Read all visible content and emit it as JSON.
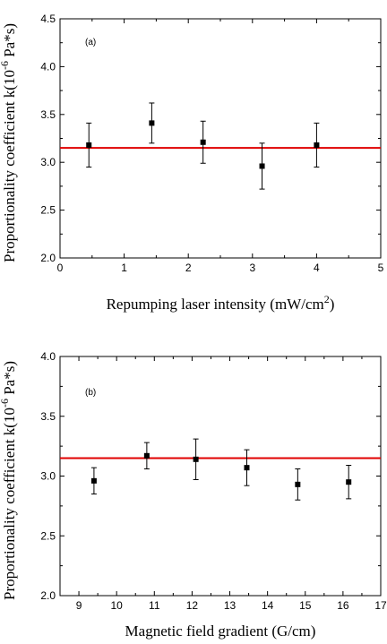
{
  "chart_data": [
    {
      "type": "scatter",
      "panel_label": "(a)",
      "xlabel": "Repumping laser intensity (mW/cm",
      "xlabel_sup": "2",
      "xlabel_end": ")",
      "ylabel": "Proportionality coefficient k(10",
      "ylabel_sup": "-6",
      "ylabel_end": " Pa*s)",
      "xlim": [
        0,
        5
      ],
      "ylim": [
        2.0,
        4.5
      ],
      "xticks": [
        "0",
        "1",
        "2",
        "3",
        "4",
        "5"
      ],
      "yticks": [
        "2.0",
        "2.5",
        "3.0",
        "3.5",
        "4.0",
        "4.5"
      ],
      "x": [
        0.45,
        1.43,
        2.23,
        3.15,
        4.0
      ],
      "y": [
        3.18,
        3.41,
        3.21,
        2.96,
        3.18
      ],
      "err": [
        0.23,
        0.21,
        0.22,
        0.24,
        0.23
      ],
      "reference_line": 3.15,
      "reference_color": "#e00000"
    },
    {
      "type": "scatter",
      "panel_label": "(b)",
      "xlabel": "Magnetic field gradient (G/cm)",
      "xlabel_sup": "",
      "xlabel_end": "",
      "ylabel": "Proportionality coefficient k(10",
      "ylabel_sup": "-6",
      "ylabel_end": " Pa*s)",
      "xlim": [
        8.5,
        17
      ],
      "ylim": [
        2.0,
        4.0
      ],
      "xticks": [
        "9",
        "10",
        "11",
        "12",
        "13",
        "14",
        "15",
        "16",
        "17"
      ],
      "yticks": [
        "2.0",
        "2.5",
        "3.0",
        "3.5",
        "4.0"
      ],
      "x": [
        9.4,
        10.8,
        12.1,
        13.45,
        14.8,
        16.15
      ],
      "y": [
        2.96,
        3.17,
        3.14,
        3.07,
        2.93,
        2.95
      ],
      "err": [
        0.11,
        0.11,
        0.17,
        0.15,
        0.13,
        0.14
      ],
      "reference_line": 3.15,
      "reference_color": "#e00000"
    }
  ]
}
